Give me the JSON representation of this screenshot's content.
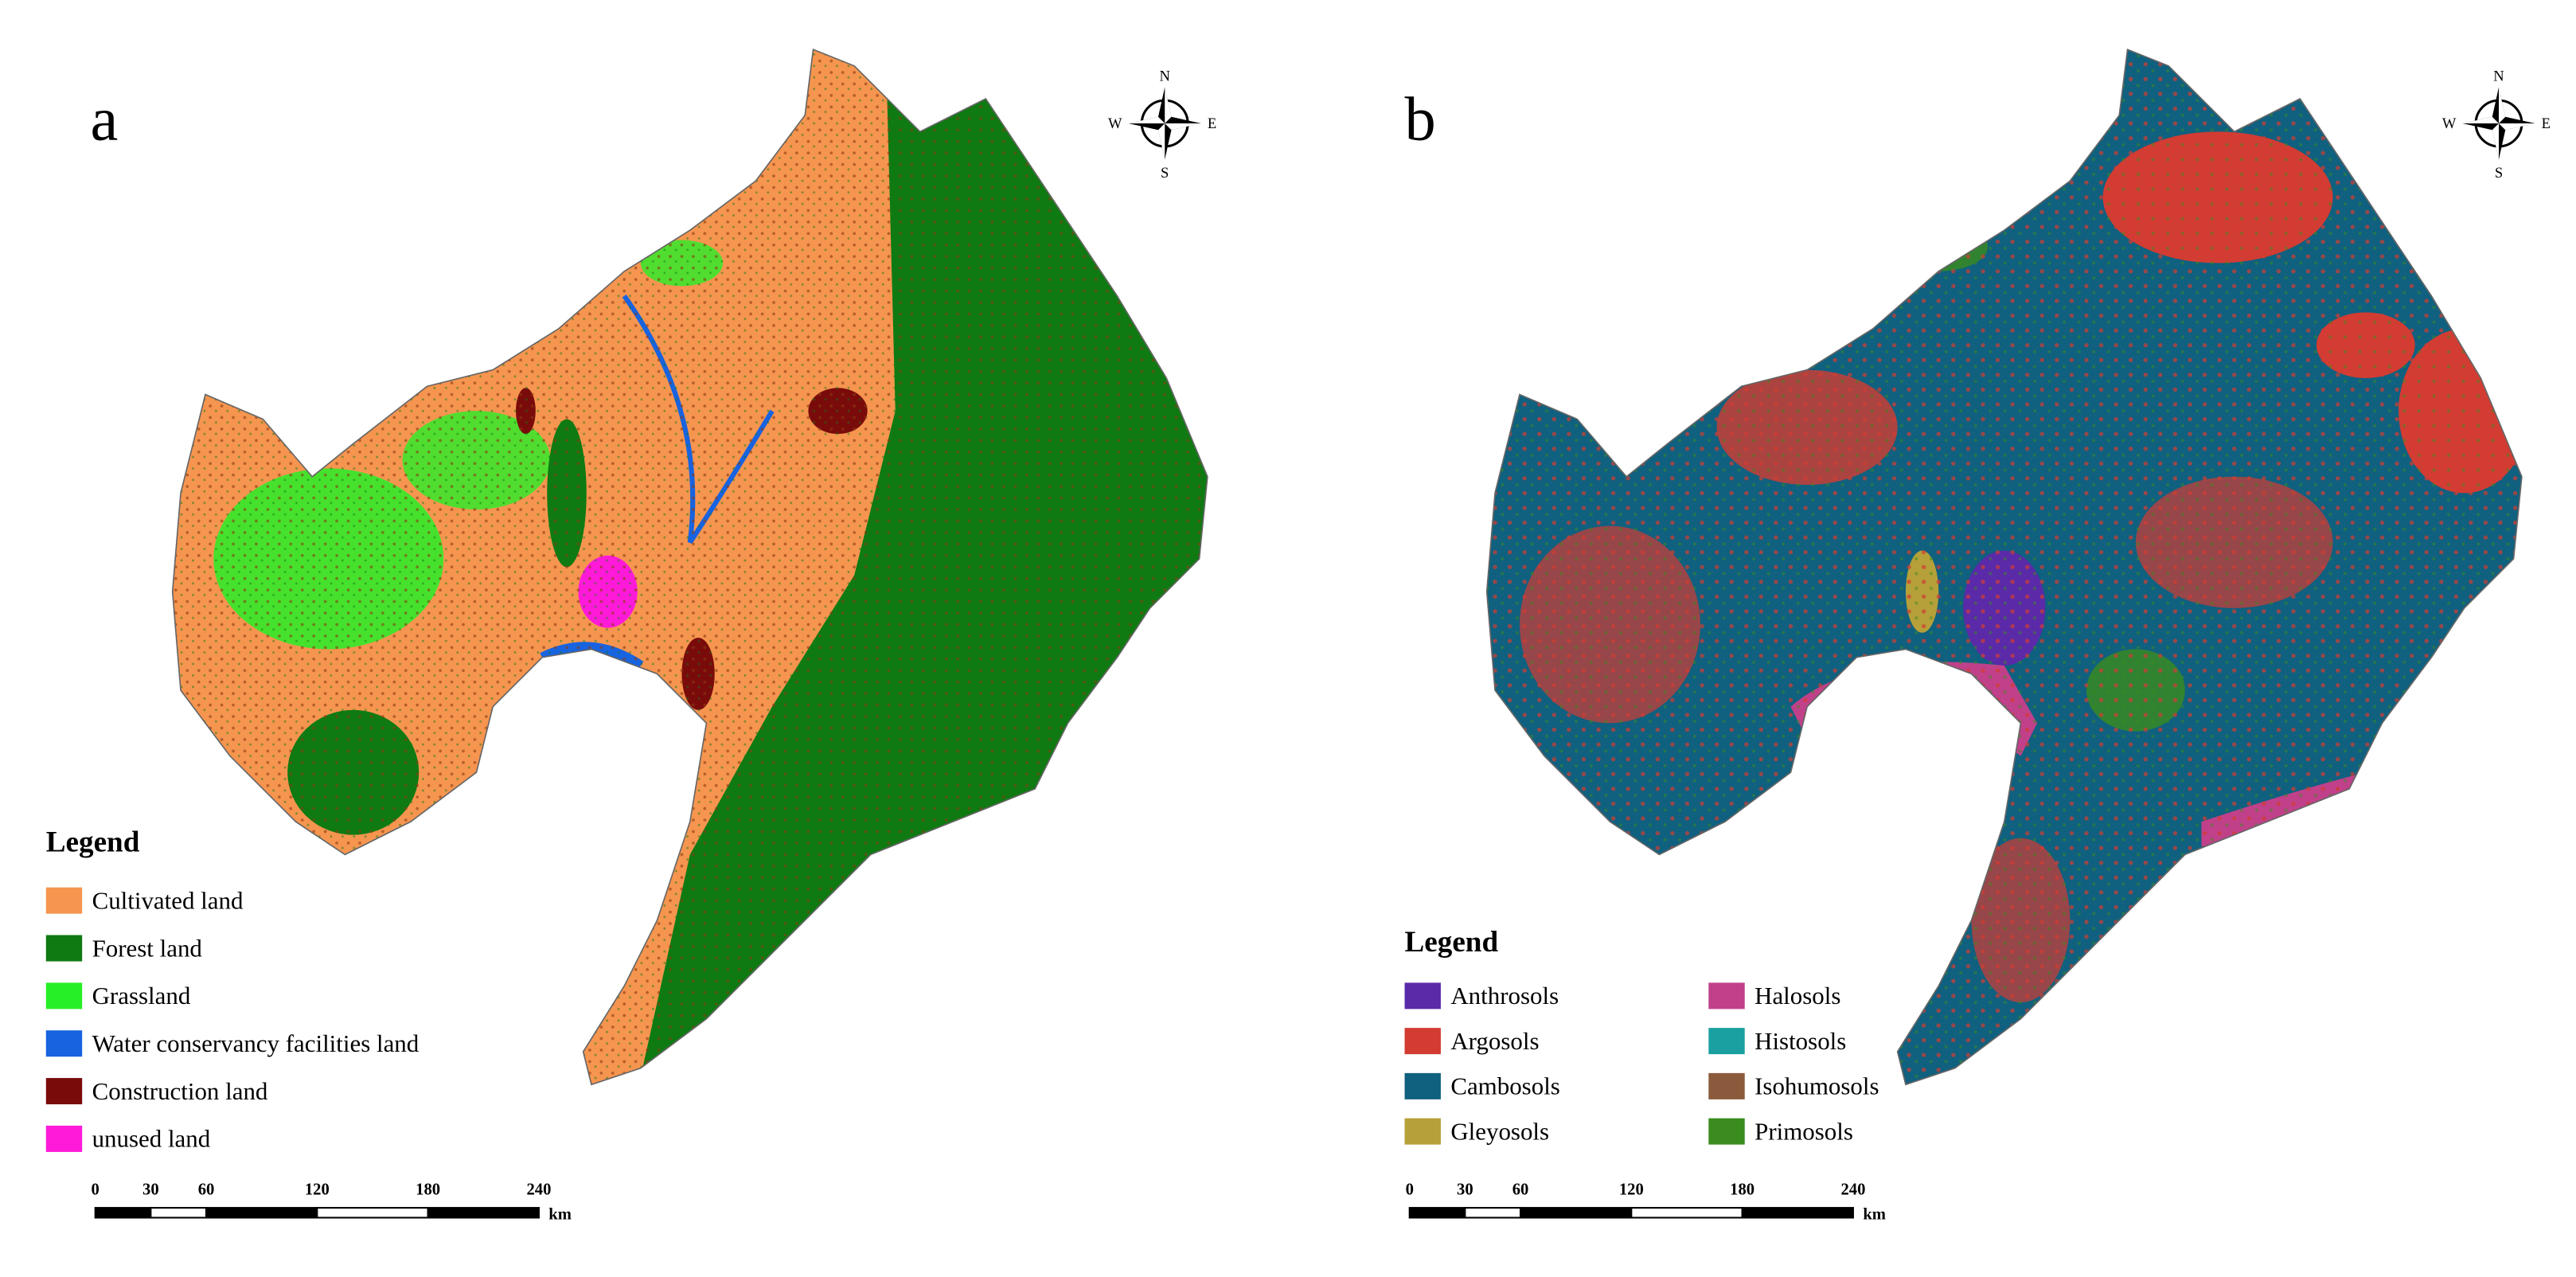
{
  "panels": [
    {
      "label": "a",
      "legend": {
        "title": "Legend",
        "items": [
          {
            "label": "Cultivated land",
            "color": "#f6954f"
          },
          {
            "label": "Forest land",
            "color": "#0f7a12"
          },
          {
            "label": "Grassland",
            "color": "#27ef27"
          },
          {
            "label": "Water conservancy facilities land",
            "color": "#1763e0"
          },
          {
            "label": "Construction land",
            "color": "#7a0b0b"
          },
          {
            "label": "unused land",
            "color": "#ff1ad9"
          }
        ]
      },
      "scale": {
        "ticks": [
          0,
          30,
          60,
          120,
          180,
          240
        ],
        "unit": "km"
      },
      "compass": {
        "n": "N",
        "s": "S",
        "w": "W",
        "e": "E"
      }
    },
    {
      "label": "b",
      "legend": {
        "title": "Legend",
        "items": [
          {
            "label": "Anthrosols",
            "color": "#5a2aa8"
          },
          {
            "label": "Argosols",
            "color": "#d23c32"
          },
          {
            "label": "Cambosols",
            "color": "#10607f"
          },
          {
            "label": "Gleyosols",
            "color": "#b5a03a"
          },
          {
            "label": "Halosols",
            "color": "#c0408a"
          },
          {
            "label": "Histosols",
            "color": "#1aa0a0"
          },
          {
            "label": "Isohumosols",
            "color": "#8b5a3c"
          },
          {
            "label": "Primosols",
            "color": "#3a8c1e"
          }
        ]
      },
      "scale": {
        "ticks": [
          0,
          30,
          60,
          120,
          180,
          240
        ],
        "unit": "km"
      },
      "compass": {
        "n": "N",
        "s": "S",
        "w": "W",
        "e": "E"
      }
    }
  ]
}
